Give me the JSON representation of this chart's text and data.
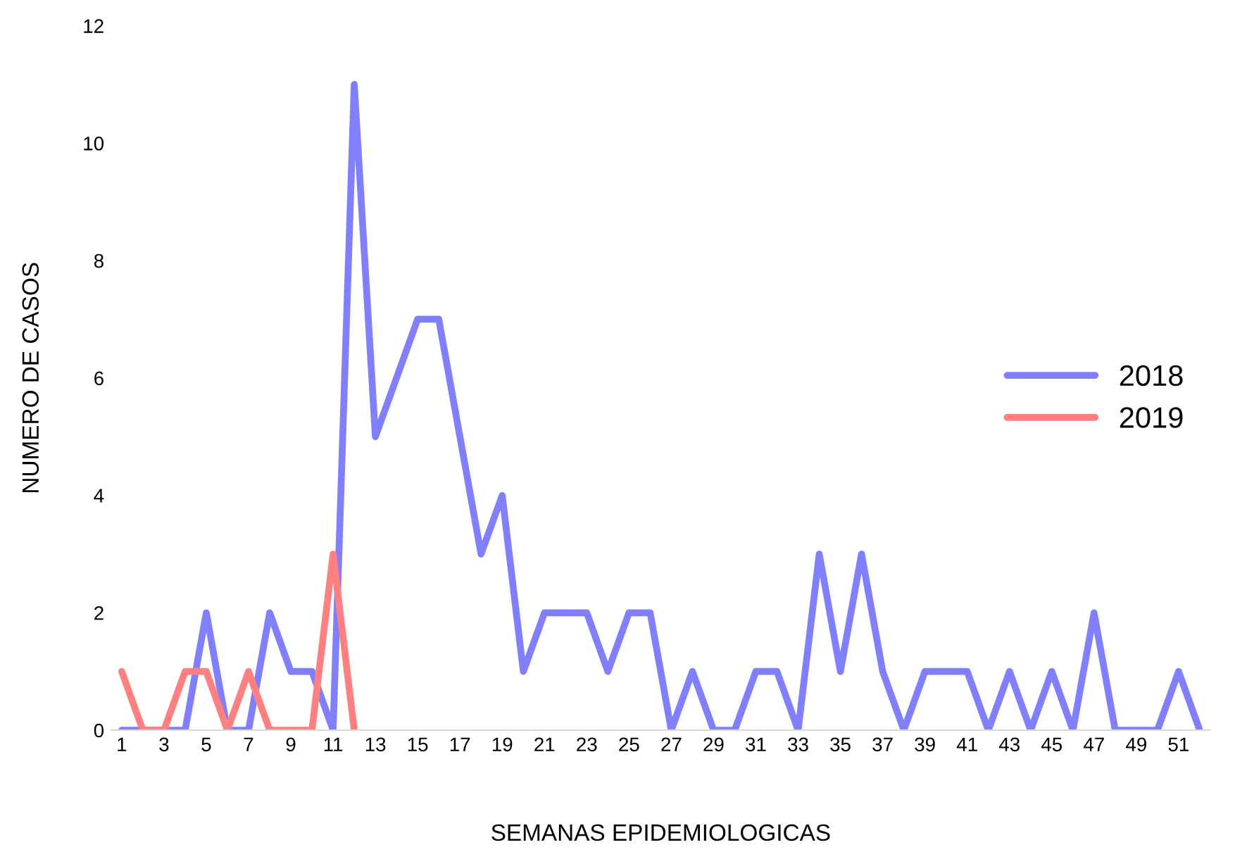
{
  "chart_data": {
    "type": "line",
    "xlabel": "SEMANAS EPIDEMIOLOGICAS",
    "ylabel": "NUMERO DE CASOS",
    "categories": [
      "1",
      null,
      "3",
      null,
      "5",
      null,
      "7",
      null,
      "9",
      null,
      "11",
      null,
      "13",
      null,
      "15",
      null,
      "17",
      null,
      "19",
      null,
      "21",
      null,
      "23",
      null,
      "25",
      null,
      "27",
      null,
      "29",
      null,
      "31",
      null,
      "33",
      null,
      "35",
      null,
      "37",
      null,
      "39",
      null,
      "41",
      null,
      "43",
      null,
      "45",
      null,
      "47",
      null,
      "49",
      null,
      "51",
      null
    ],
    "series": [
      {
        "name": "2018",
        "color": "#8080ff",
        "values": [
          0,
          0,
          0,
          0,
          2,
          0,
          0,
          2,
          1,
          1,
          0,
          11,
          5,
          6,
          7,
          7,
          5,
          3,
          4,
          1,
          2,
          2,
          2,
          1,
          2,
          2,
          0,
          1,
          0,
          0,
          1,
          1,
          0,
          3,
          1,
          3,
          1,
          0,
          1,
          1,
          1,
          0,
          1,
          0,
          1,
          0,
          2,
          0,
          0,
          0,
          1,
          0
        ]
      },
      {
        "name": "2019",
        "color": "#ff8080",
        "values": [
          1,
          0,
          0,
          1,
          1,
          0,
          1,
          0,
          0,
          0,
          3,
          0,
          null,
          null,
          null,
          null,
          null,
          null,
          null,
          null,
          null,
          null,
          null,
          null,
          null,
          null,
          null,
          null,
          null,
          null,
          null,
          null,
          null,
          null,
          null,
          null,
          null,
          null,
          null,
          null,
          null,
          null,
          null,
          null,
          null,
          null,
          null,
          null,
          null,
          null,
          null,
          null
        ]
      }
    ],
    "ylim": [
      0,
      12
    ],
    "yticks": [
      0,
      2,
      4,
      6,
      8,
      10,
      12
    ],
    "grid": false,
    "legend": "right",
    "marker": "none",
    "line_style": "solid"
  }
}
